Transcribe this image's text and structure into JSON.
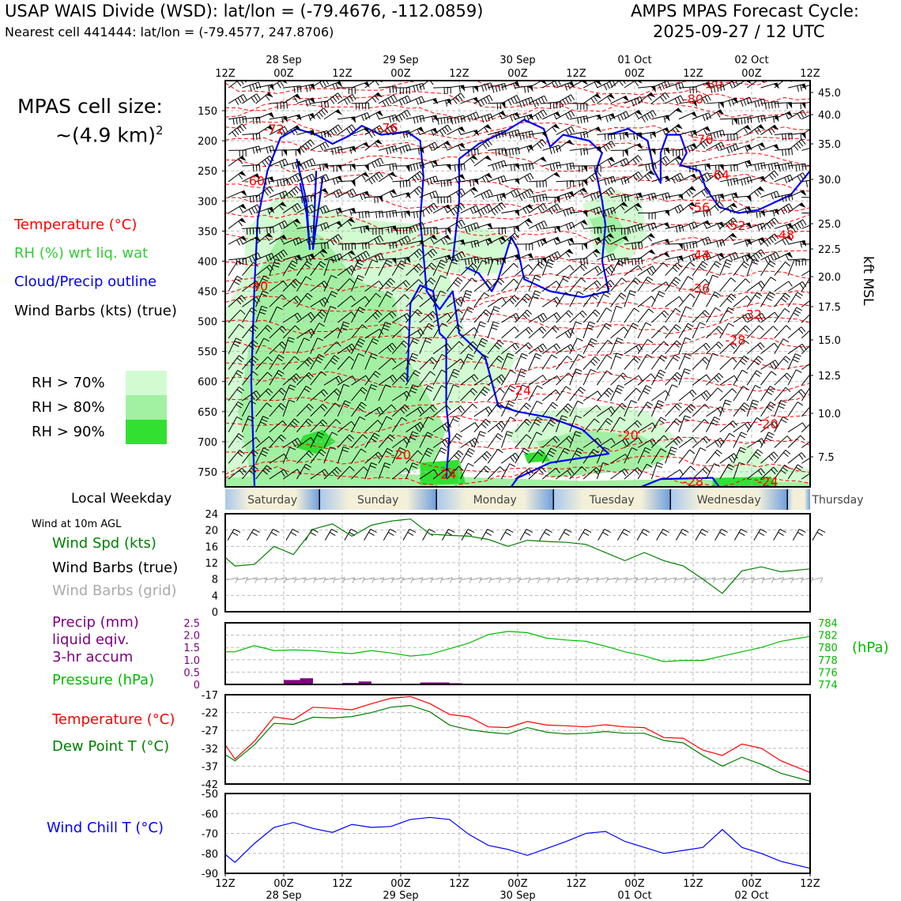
{
  "header": {
    "title": "USAP WAIS Divide (WSD): lat/lon = (-79.4676, -112.0859)",
    "subtitle": "Nearest cell 441444: lat/lon = (-79.4577, 247.8706)",
    "cycle_label": "AMPS MPAS Forecast Cycle:",
    "cycle_time": "2025-09-27 / 12 UTC"
  },
  "sidebar": {
    "cell_size_label": "MPAS cell size:",
    "cell_size_value": "~(4.9 km)",
    "cell_size_exp": "2",
    "legend_temperature": "Temperature (°C)",
    "legend_rh": "RH (%) wrt liq. wat",
    "legend_cloud": "Cloud/Precip outline",
    "legend_wind": "Wind Barbs (kts) (true)",
    "rh_levels": [
      {
        "label": "RH > 70%",
        "color": "#d2fbd2"
      },
      {
        "label": "RH > 80%",
        "color": "#a2f0a2"
      },
      {
        "label": "RH > 90%",
        "color": "#32e032"
      }
    ],
    "local_weekday_label": "Local Weekday",
    "wind_10m_label": "Wind at 10m AGL",
    "wind_spd_label": "Wind Spd (kts)",
    "wind_barbs_true_label": "Wind Barbs (true)",
    "wind_barbs_grid_label": "Wind Barbs (grid)",
    "precip_label_1": "Precip (mm)",
    "precip_label_2": "liquid eqiv.",
    "precip_label_3": "3-hr accum",
    "pressure_label": "Pressure (hPa)",
    "temp_label": "Temperature (°C)",
    "dew_label": "Dew Point T (°C)",
    "wind_chill_label": "Wind Chill T (°C)",
    "hpa_unit": "(hPa)",
    "kft_label": "kft MSL"
  },
  "colors": {
    "temperature": "#ff0000",
    "rh": "#33cc33",
    "cloud": "#0000ff",
    "wind_speed": "#008000",
    "precip": "#800080",
    "pressure": "#00bb00",
    "dew": "#008000",
    "wind_chill": "#0000ff",
    "grid_barbs": "#aaaaaa"
  },
  "time_axis": {
    "ticks": [
      "12Z",
      "00Z",
      "12Z",
      "00Z",
      "12Z",
      "00Z",
      "12Z",
      "00Z",
      "12Z",
      "00Z",
      "12Z"
    ],
    "dates": [
      {
        "label": "28 Sep",
        "tick_index": 1
      },
      {
        "label": "29 Sep",
        "tick_index": 3
      },
      {
        "label": "30 Sep",
        "tick_index": 5
      },
      {
        "label": "01 Oct",
        "tick_index": 7
      },
      {
        "label": "02 Oct",
        "tick_index": 9
      }
    ]
  },
  "weekday_bar": {
    "days": [
      "Saturday",
      "Sunday",
      "Monday",
      "Tuesday",
      "Wednesday",
      "Thursday"
    ]
  },
  "chart_data": [
    {
      "type": "heatmap",
      "panel": "cross-section",
      "y_left_label_values": [
        150,
        200,
        250,
        300,
        350,
        400,
        450,
        500,
        550,
        600,
        650,
        700,
        750
      ],
      "y_right_label_values": [
        "45.0",
        "40.0",
        "35.0",
        "30.0",
        "25.0",
        "22.5",
        "20.0",
        "17.5",
        "15.0",
        "12.5",
        "10.0",
        "7.5"
      ],
      "ylim_hpa": [
        775,
        100
      ],
      "temperature_contour_labels": [
        {
          "label": "-80",
          "time_h": 150,
          "hpa": 107
        },
        {
          "label": "-80",
          "time_h": 144,
          "hpa": 132
        },
        {
          "label": "-72",
          "time_h": 15,
          "hpa": 182
        },
        {
          "label": "-76",
          "time_h": 50,
          "hpa": 180
        },
        {
          "label": "-76",
          "time_h": 147,
          "hpa": 199
        },
        {
          "label": "-64",
          "time_h": 152,
          "hpa": 258
        },
        {
          "label": "-60",
          "time_h": 9,
          "hpa": 268
        },
        {
          "label": "-56",
          "time_h": 146,
          "hpa": 312
        },
        {
          "label": "-52",
          "time_h": 157,
          "hpa": 342
        },
        {
          "label": "-48",
          "time_h": 172,
          "hpa": 358
        },
        {
          "label": "-44",
          "time_h": 146,
          "hpa": 391
        },
        {
          "label": "-40",
          "time_h": 10,
          "hpa": 443
        },
        {
          "label": "-36",
          "time_h": 146,
          "hpa": 447
        },
        {
          "label": "-32",
          "time_h": 162,
          "hpa": 490
        },
        {
          "label": "-28",
          "time_h": 157,
          "hpa": 533
        },
        {
          "label": "-24",
          "time_h": 91,
          "hpa": 616
        },
        {
          "label": "-20",
          "time_h": 167,
          "hpa": 672
        },
        {
          "label": "-20",
          "time_h": 124,
          "hpa": 690
        },
        {
          "label": "-20",
          "time_h": 54,
          "hpa": 723
        },
        {
          "label": "-24",
          "time_h": 68,
          "hpa": 755
        },
        {
          "label": "-28",
          "time_h": 144,
          "hpa": 768
        },
        {
          "label": "-24",
          "time_h": 167,
          "hpa": 768
        }
      ]
    },
    {
      "type": "line",
      "panel": "wind-speed",
      "ylim": [
        0,
        24
      ],
      "yticks": [
        "0",
        "4",
        "8",
        "12",
        "16",
        "20",
        "24"
      ],
      "x_hours": [
        0,
        3,
        9,
        15,
        21,
        27,
        33,
        39,
        45,
        51,
        57,
        63,
        69,
        75,
        81,
        87,
        93,
        99,
        105,
        111,
        117,
        123,
        129,
        135,
        141,
        147,
        153,
        159,
        165,
        171,
        180
      ],
      "values": [
        13.3,
        11.2,
        11.6,
        16.0,
        14.0,
        20.2,
        21.5,
        18.5,
        21.2,
        22.2,
        22.7,
        19.0,
        18.7,
        18.5,
        17.7,
        16.0,
        17.5,
        17.2,
        17.0,
        16.5,
        14.5,
        12.5,
        14.5,
        12.5,
        11.2,
        8.0,
        4.5,
        10.0,
        11.0,
        9.8,
        10.5
      ]
    },
    {
      "type": "bar+line",
      "panel": "precip-pressure",
      "precip_ylim": [
        0,
        2.5
      ],
      "precip_yticks": [
        "0",
        "0.5",
        "1.0",
        "1.5",
        "2.0",
        "2.5"
      ],
      "precip_bars": [
        {
          "start_h": 18,
          "end_h": 23,
          "value": 0.18
        },
        {
          "start_h": 23,
          "end_h": 27,
          "value": 0.25
        },
        {
          "start_h": 36,
          "end_h": 41,
          "value": 0.06
        },
        {
          "start_h": 41,
          "end_h": 45,
          "value": 0.12
        },
        {
          "start_h": 60,
          "end_h": 69,
          "value": 0.08
        },
        {
          "start_h": 69,
          "end_h": 73,
          "value": 0.05
        }
      ],
      "pressure_ylim": [
        774,
        784
      ],
      "pressure_yticks": [
        "774",
        "776",
        "778",
        "780",
        "782",
        "784"
      ],
      "pressure_x": [
        0,
        3,
        9,
        15,
        21,
        27,
        33,
        39,
        45,
        51,
        57,
        63,
        69,
        75,
        81,
        87,
        93,
        99,
        105,
        111,
        117,
        123,
        129,
        135,
        141,
        147,
        153,
        159,
        165,
        171,
        180
      ],
      "pressure_values": [
        779.3,
        779.3,
        780.3,
        779.5,
        779.6,
        779.5,
        779.2,
        779.0,
        779.5,
        779.1,
        778.6,
        778.9,
        779.8,
        780.7,
        782.1,
        782.6,
        782.4,
        781.5,
        781.2,
        781.0,
        780.2,
        779.3,
        778.6,
        777.7,
        777.9,
        777.9,
        778.6,
        779.3,
        780.0,
        781.0,
        781.8
      ]
    },
    {
      "type": "line",
      "panel": "temperature-dewpoint",
      "ylim": [
        -42,
        -17
      ],
      "yticks": [
        "-42",
        "-37",
        "-32",
        "-27",
        "-22",
        "-17"
      ],
      "x_hours": [
        0,
        3,
        9,
        15,
        21,
        27,
        33,
        39,
        45,
        51,
        57,
        63,
        69,
        75,
        81,
        87,
        93,
        99,
        105,
        111,
        117,
        123,
        129,
        135,
        141,
        147,
        153,
        159,
        165,
        171,
        180
      ],
      "series": [
        {
          "name": "Temperature (°C)",
          "values": [
            -31.0,
            -35.0,
            -30.0,
            -23.2,
            -24.0,
            -20.5,
            -20.8,
            -21.2,
            -19.5,
            -18.0,
            -17.5,
            -19.5,
            -22.5,
            -23.2,
            -26.0,
            -26.2,
            -24.5,
            -25.5,
            -25.7,
            -26.0,
            -25.4,
            -26.0,
            -26.2,
            -29.0,
            -29.2,
            -32.5,
            -34.0,
            -30.8,
            -32.0,
            -35.5,
            -38.8
          ]
        },
        {
          "name": "Dew Point T (°C)",
          "values": [
            -33.8,
            -35.5,
            -31.0,
            -25.0,
            -25.3,
            -23.3,
            -23.5,
            -23.1,
            -22.0,
            -20.5,
            -20.0,
            -21.8,
            -25.5,
            -26.8,
            -27.5,
            -28.0,
            -26.2,
            -27.5,
            -28.0,
            -27.8,
            -27.3,
            -27.8,
            -27.8,
            -29.8,
            -30.5,
            -34.0,
            -37.0,
            -34.5,
            -36.5,
            -39.0,
            -41.2
          ]
        }
      ]
    },
    {
      "type": "line",
      "panel": "wind-chill",
      "ylim": [
        -90,
        -50
      ],
      "yticks": [
        "-90",
        "-80",
        "-70",
        "-60",
        "-50"
      ],
      "x_hours": [
        0,
        3,
        9,
        15,
        21,
        27,
        33,
        39,
        45,
        51,
        57,
        63,
        69,
        75,
        81,
        87,
        93,
        99,
        105,
        111,
        117,
        123,
        129,
        135,
        141,
        147,
        150,
        153,
        159,
        165,
        171,
        180
      ],
      "values": [
        -80.5,
        -84.5,
        -75.0,
        -67.0,
        -64.5,
        -67.5,
        -69.5,
        -65.5,
        -67.0,
        -66.5,
        -63.0,
        -62.0,
        -63.0,
        -70.5,
        -76.0,
        -78.0,
        -81.0,
        -77.5,
        -74.0,
        -70.0,
        -69.0,
        -74.0,
        -77.0,
        -80.0,
        -78.5,
        -77.0,
        -72.5,
        -68.0,
        -77.0,
        -80.0,
        -84.0,
        -87.5
      ]
    }
  ]
}
